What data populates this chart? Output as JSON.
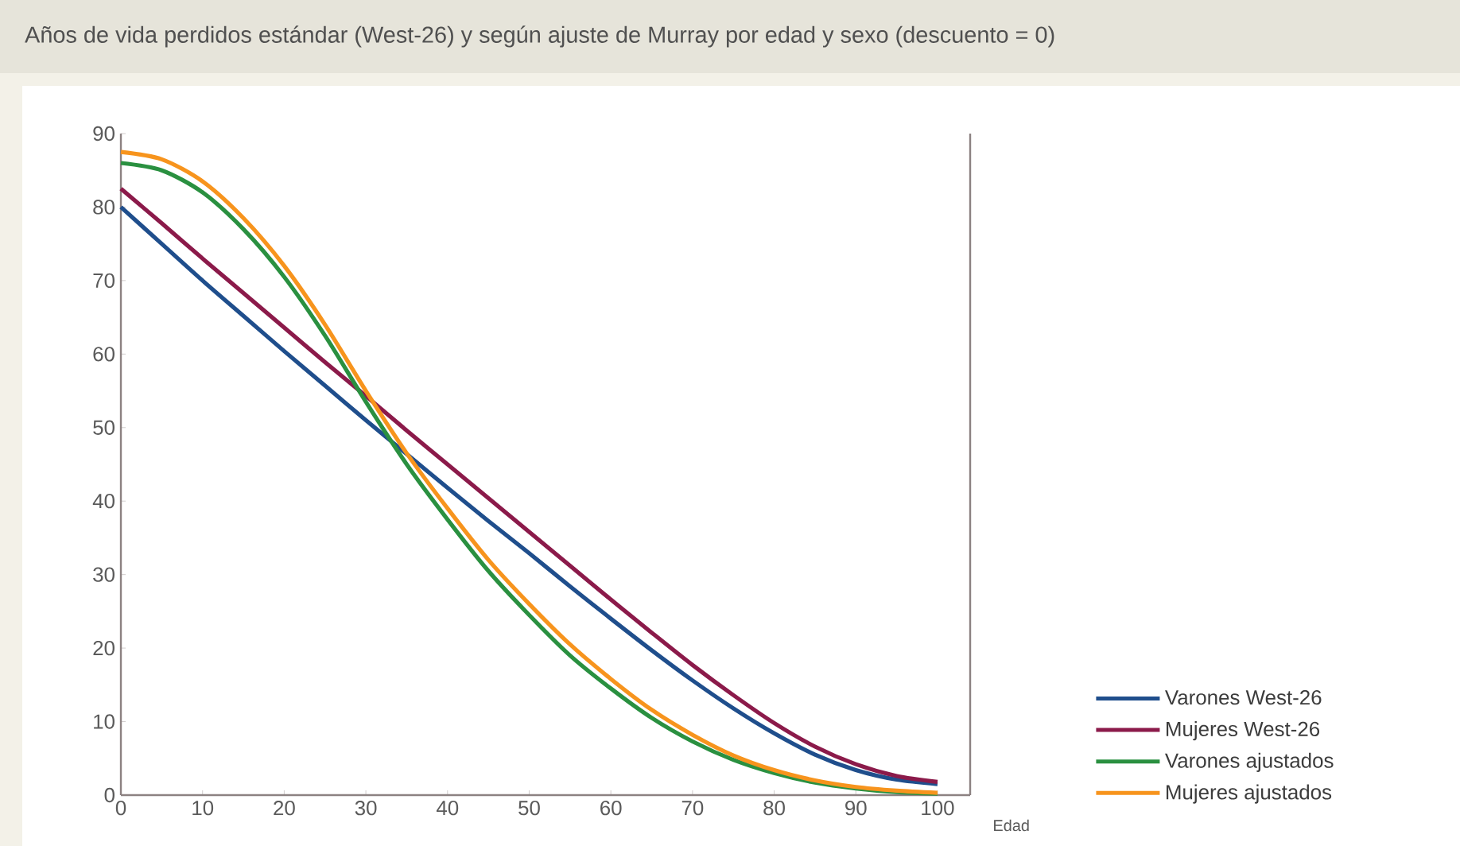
{
  "chart_data": {
    "type": "line",
    "title": "Años de vida perdidos estándar (West-26) y según ajuste de Murray por edad y sexo (descuento = 0)",
    "xlabel": "Edad",
    "x": [
      0,
      5,
      10,
      15,
      20,
      25,
      30,
      35,
      40,
      45,
      50,
      55,
      60,
      65,
      70,
      75,
      80,
      85,
      90,
      95,
      100
    ],
    "series": [
      {
        "name": "Varones West-26",
        "color": "#1f4e8c",
        "values": [
          80,
          75,
          70,
          65.2,
          60.4,
          55.7,
          51,
          46.4,
          41.8,
          37.3,
          32.9,
          28.4,
          24,
          19.7,
          15.6,
          11.8,
          8.4,
          5.5,
          3.4,
          2.1,
          1.5
        ]
      },
      {
        "name": "Mujeres West-26",
        "color": "#8b1a4a",
        "values": [
          82.5,
          77.8,
          73,
          68.3,
          63.6,
          58.9,
          54.3,
          49.6,
          45,
          40.4,
          35.8,
          31.2,
          26.6,
          22.1,
          17.7,
          13.6,
          9.8,
          6.6,
          4.2,
          2.6,
          1.8
        ]
      },
      {
        "name": "Varones ajustados",
        "color": "#2a9040",
        "values": [
          86,
          85,
          82,
          77,
          70.5,
          62.5,
          53.5,
          45,
          37.5,
          30.5,
          24.5,
          19,
          14.5,
          10.5,
          7.3,
          4.8,
          3,
          1.7,
          0.9,
          0.4,
          0.2
        ]
      },
      {
        "name": "Mujeres ajustados",
        "color": "#f7941d",
        "values": [
          87.5,
          86.5,
          83.5,
          78.5,
          72,
          64,
          55,
          46.5,
          39,
          32,
          26,
          20.5,
          15.8,
          11.6,
          8.2,
          5.4,
          3.4,
          2,
          1.1,
          0.6,
          0.3
        ]
      }
    ],
    "xlim": [
      0,
      104
    ],
    "ylim": [
      0,
      90
    ],
    "xticks": [
      0,
      10,
      20,
      30,
      40,
      50,
      60,
      70,
      80,
      90,
      100
    ],
    "yticks": [
      0,
      10,
      20,
      30,
      40,
      50,
      60,
      70,
      80,
      90
    ],
    "grid": false,
    "legend": "bottom right",
    "marker": "none",
    "line_style": "solid"
  }
}
